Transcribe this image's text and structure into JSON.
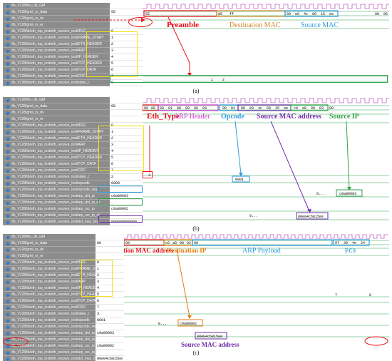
{
  "panel_a": {
    "caption": "(a)",
    "signals": [
      "/tb_V128/Rx_clk_GM",
      "/tb_V128/gmii_rx_data",
      "/tb_V128/gmii_rx_dv",
      "/tb_V128/gmii_rx_er",
      "/tb_V128/tb/eth_top_inst/eth_receive_inst/IDLE",
      "/tb_V128/tb/eth_top_inst/eth_receive_inst/FRAME_START",
      "/tb_V128/tb/eth_top_inst/eth_receive_inst/ETH_HEADER",
      "/tb_V128/tb/eth_top_inst/eth_receive_inst/ARP",
      "/tb_V128/tb/eth_top_inst/eth_receive_inst/IP_HEADER",
      "/tb_V128/tb/eth_top_inst/eth_receive_inst/TCP_HEADER",
      "/tb_V128/tb/eth_top_inst/eth_receive_inst/TCP_DATA",
      "/tb_V128/tb/eth_top_inst/eth_receive_inst/CRC",
      "/tb_V128/tb/eth_top_inst/eth_receive_inst/state_c"
    ],
    "values": [
      "",
      "55",
      "",
      "",
      "0",
      "1",
      "2",
      "3",
      "4",
      "5",
      "6",
      "7",
      "0"
    ],
    "bus": {
      "v0": "55",
      "v1": "d5",
      "v2": "ff",
      "v3": "00",
      "v4": "e0",
      "v5": "4c",
      "v6": "68",
      "v7": "15",
      "v8": "ee",
      "v9": "08",
      "v10": "06"
    },
    "state": {
      "s1": "1",
      "s2": "2"
    },
    "labels": {
      "preamble": "Preamble",
      "dest_mac": "Destination MAC",
      "src_mac": "Source MAC"
    },
    "colors": {
      "preamble": "#e8111b",
      "dest_mac": "#d4872b",
      "src_mac": "#2e9be0",
      "states": "#f2e21b",
      "state_row": "#2fa14a"
    }
  },
  "panel_b": {
    "caption": "(b)",
    "signals": [
      "/tb_V128/Rx_clk_GM",
      "/tb_V128/gmii_rx_data",
      "/tb_V128/gmii_rx_dv",
      "/tb_V128/gmii_rx_er",
      "/tb_V128/tb/eth_top_inst/eth_receive_inst/IDLE",
      "/tb_V128/tb/eth_top_inst/eth_receive_inst/FRAME_START",
      "/tb_V128/tb/eth_top_inst/eth_receive_inst/ETH_HEADER",
      "/tb_V128/tb/eth_top_inst/eth_receive_inst/ARP",
      "/tb_V128/tb/eth_top_inst/eth_receive_inst/IP_HEADER",
      "/tb_V128/tb/eth_top_inst/eth_receive_inst/TCP_HEADER",
      "/tb_V128/tb/eth_top_inst/eth_receive_inst/TCP_DATA",
      "/tb_V128/tb/eth_top_inst/eth_receive_inst/CRC",
      "/tb_V128/tb/eth_top_inst/eth_receive_inst/state_c",
      "/tb_V128/tb/eth_top_inst/eth_receive_inst/opcode",
      "/tb_V128/tb/eth_top_inst/eth_receive_inst/opcode_req",
      "/tb_V128/tb/eth_top_inst/eth_receive_inst/arp_dst_ip",
      "/tb_V128/tb/eth_top_inst/eth_receive_inst/arp_dst_ip_ok",
      "/tb_V128/tb/eth_top_inst/eth_receive_inst/arp_src_ip",
      "/tb_V128/tb/eth_top_inst/eth_receive_inst/arp_src_ip_ok",
      "/tb_V128/tb/eth_top_inst/eth_receive_inst/dst_mac_tmp"
    ],
    "values": [
      "",
      "08",
      "",
      "",
      "0",
      "1",
      "2",
      "3",
      "4",
      "5",
      "6",
      "7",
      "2",
      "0000",
      "",
      "c0a80003",
      "",
      "c0a80002",
      "",
      "000000000000"
    ],
    "bus": {
      "v0": "08",
      "v1": "06",
      "v2": "00",
      "v3": "01",
      "v4": "08",
      "v5": "00",
      "v6": "06",
      "v7": "04",
      "v8": "00",
      "v9": "01",
      "v10": "00",
      "v11": "e0",
      "v12": "4c",
      "v13": "68",
      "v14": "15",
      "v15": "ee",
      "v16": "c0",
      "v17": "a8",
      "v18": "00",
      "v19": "03",
      "v20": "00"
    },
    "mids": {
      "state": "3",
      "opcode": "0001",
      "ip_mid": "0...",
      "ip_end": "c0a80003",
      "mac_mid": "0...",
      "mac_end": "00e04c6815ee"
    },
    "labels": {
      "eth_type": "Eth_Type",
      "arp_header": "ARP Header",
      "opcode": "Opcode",
      "src_mac_addr": "Source MAC address",
      "src_ip": "Source IP"
    },
    "colors": {
      "eth_type": "#e8111b",
      "arp_header": "#cc33cc",
      "opcode": "#2e9be0",
      "src_mac_addr": "#6f2da8",
      "src_ip": "#2fa14a",
      "states": "#f2e21b"
    }
  },
  "panel_c": {
    "caption": "(c)",
    "signals": [
      "/tb_V128/Rx_clk_GM",
      "/tb_V128/gmii_rx_data",
      "/tb_V128/gmii_rx_dv",
      "/tb_V128/gmii_rx_er",
      "/tb_V128/tb/eth_top_inst/eth_receive_inst/IDLE",
      "/tb_V128/tb/eth_top_inst/eth_receive_inst/FRAME_START",
      "/tb_V128/tb/eth_top_inst/eth_receive_inst/ETH_HEADER",
      "/tb_V128/tb/eth_top_inst/eth_receive_inst/ARP",
      "/tb_V128/tb/eth_top_inst/eth_receive_inst/IP_HEADER",
      "/tb_V128/tb/eth_top_inst/eth_receive_inst/TCP_HEADER",
      "/tb_V128/tb/eth_top_inst/eth_receive_inst/TCP_DATA",
      "/tb_V128/tb/eth_top_inst/eth_receive_inst/CRC",
      "/tb_V128/tb/eth_top_inst/eth_receive_inst/state_c",
      "/tb_V128/tb/eth_top_inst/eth_receive_inst/opcode",
      "/tb_V128/tb/eth_top_inst/eth_receive_inst/opcode_req",
      "/tb_V128/tb/eth_top_inst/eth_receive_inst/arp_dst_ip",
      "/tb_V128/tb/eth_top_inst/eth_receive_inst/arp_dst_ip_ok",
      "/tb_V128/tb/eth_top_inst/eth_receive_inst/arp_src_ip",
      "/tb_V128/tb/eth_top_inst/eth_receive_inst/arp_src_ip_ok",
      "/tb_V128/tb/eth_top_inst/eth_receive_inst/dst_mac_tmp",
      "/tb_V128/tb/eth_top_inst/eth_receive_inst/arp_mac_tmp",
      "/tb_V128/tb/eth_top_inst/eth_receive_inst/arp_ack_ok"
    ],
    "values": [
      "",
      "00",
      "",
      "",
      "0",
      "1",
      "2",
      "3",
      "4",
      "5",
      "6",
      "7",
      "3",
      "0001",
      "",
      "c0a80003",
      "",
      "c0a80002",
      "",
      "00e04c6815ee",
      "000000",
      ""
    ],
    "bus": {
      "v0": "00",
      "v1": "c0",
      "v2": "a8",
      "v3": "00",
      "v4": "02",
      "v5": "00",
      "v6": "97",
      "v7": "39",
      "v8": "4e",
      "v9": "24"
    },
    "mids": {
      "state_end": "7",
      "state_last": "0",
      "ip_mid": "0...",
      "ip_box": "c0a80002",
      "mac_box": "00e04c6815ee"
    },
    "labels": {
      "dest_mac_addr": "Destination MAC address",
      "dest_ip": "Destination IP",
      "arp_payload": "ARP Payload",
      "fcs": "FCS",
      "src_mac_addr": "Source MAC address"
    },
    "colors": {
      "dest_mac_addr": "#e8111b",
      "dest_ip": "#e6790f",
      "arp_payload": "#2e9be0",
      "fcs": "#2e9be0",
      "src_mac_addr": "#6f2da8",
      "states": "#f2e21b"
    }
  }
}
